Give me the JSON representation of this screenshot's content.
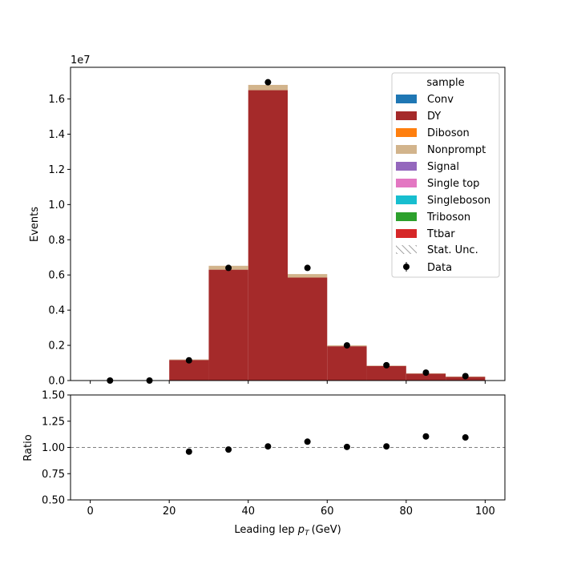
{
  "chart_data": [
    {
      "type": "bar",
      "stacked": true,
      "panel": "main",
      "xlabel": "Leading lep",
      "xlabel_symbol": "p",
      "xlabel_sub": "T",
      "xlabel_unit": "(GeV)",
      "ylabel": "Events",
      "y_scale_label": "1e7",
      "xlim": [
        -5,
        105
      ],
      "ylim": [
        0,
        17.8
      ],
      "y_unit_scale": 1000000,
      "x_ticks": [
        "0",
        "20",
        "40",
        "60",
        "80",
        "100"
      ],
      "y_ticks": [
        "0.0",
        "0.2",
        "0.4",
        "0.6",
        "0.8",
        "1.0",
        "1.2",
        "1.4",
        "1.6"
      ],
      "bin_edges": [
        0,
        10,
        20,
        30,
        40,
        50,
        60,
        70,
        80,
        90,
        100
      ],
      "series": [
        {
          "name": "Conv",
          "color": "#1f77b4",
          "values": [
            0,
            0,
            0,
            0,
            0,
            0,
            0,
            0,
            0,
            0
          ]
        },
        {
          "name": "DY",
          "color": "#a52a2a",
          "values": [
            0,
            0,
            1.17,
            6.3,
            16.5,
            5.85,
            1.95,
            0.83,
            0.39,
            0.21
          ]
        },
        {
          "name": "Diboson",
          "color": "#ff7f0e",
          "values": [
            0,
            0,
            0,
            0,
            0,
            0,
            0,
            0,
            0,
            0
          ]
        },
        {
          "name": "Nonprompt",
          "color": "#d2b48c",
          "values": [
            0,
            0,
            0.03,
            0.22,
            0.3,
            0.2,
            0.05,
            0.02,
            0.02,
            0.02
          ]
        },
        {
          "name": "Signal",
          "color": "#9467bd",
          "values": [
            0,
            0,
            0,
            0,
            0,
            0,
            0,
            0,
            0,
            0
          ]
        },
        {
          "name": "Single top",
          "color": "#e377c2",
          "values": [
            0,
            0,
            0,
            0,
            0,
            0,
            0,
            0,
            0,
            0
          ]
        },
        {
          "name": "Singleboson",
          "color": "#17becf",
          "values": [
            0,
            0,
            0,
            0,
            0,
            0,
            0,
            0,
            0,
            0
          ]
        },
        {
          "name": "Triboson",
          "color": "#2ca02c",
          "values": [
            0,
            0,
            0,
            0,
            0,
            0,
            0,
            0,
            0,
            0
          ]
        },
        {
          "name": "Ttbar",
          "color": "#d62728",
          "values": [
            0,
            0,
            0,
            0,
            0,
            0,
            0,
            0,
            0,
            0
          ]
        }
      ],
      "data_points": {
        "name": "Data",
        "x": [
          5,
          15,
          25,
          35,
          45,
          55,
          65,
          75,
          85,
          95
        ],
        "y": [
          0,
          0,
          1.15,
          6.4,
          16.95,
          6.4,
          2.0,
          0.87,
          0.45,
          0.25
        ]
      },
      "legend": {
        "title": "sample",
        "placement": "top-right",
        "stat_unc_label": "Stat. Unc."
      }
    },
    {
      "type": "scatter",
      "panel": "ratio",
      "ylabel": "Ratio",
      "xlim": [
        -5,
        105
      ],
      "ylim": [
        0.5,
        1.5
      ],
      "reference_line": 1.0,
      "x_ticks": [
        "0",
        "20",
        "40",
        "60",
        "80",
        "100"
      ],
      "y_ticks": [
        "0.50",
        "0.75",
        "1.00",
        "1.25",
        "1.50"
      ],
      "x": [
        25,
        35,
        45,
        55,
        65,
        75,
        85,
        95
      ],
      "y": [
        0.96,
        0.98,
        1.01,
        1.055,
        1.005,
        1.01,
        1.105,
        1.095
      ]
    }
  ]
}
